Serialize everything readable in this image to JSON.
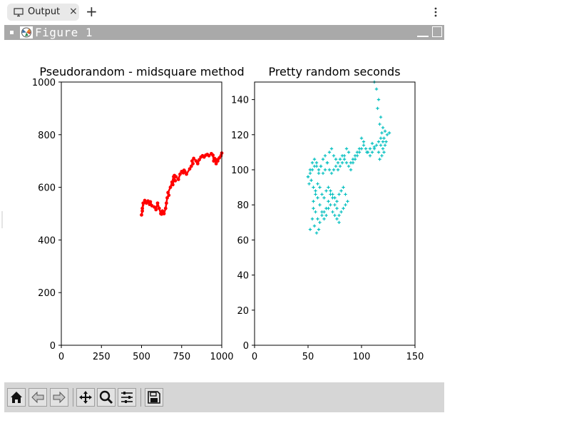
{
  "tab": {
    "title": "Output",
    "close": "×",
    "new_tab": "+"
  },
  "window": {
    "title": "Figure 1"
  },
  "toolbar": {
    "buttons": [
      "home-icon",
      "back-arrow-icon",
      "forward-arrow-icon",
      "pan-icon",
      "zoom-icon",
      "configure-subplots-icon",
      "save-icon"
    ]
  },
  "colors": {
    "left_series": "#ff0000",
    "right_series": "#00bfbf",
    "titlebar": "#a9a9a9",
    "toolbar": "#d6d6d6"
  },
  "chart_data": [
    {
      "type": "line",
      "title": "Pseudorandom - midsquare method",
      "xlabel": "",
      "ylabel": "",
      "xlim": [
        0,
        1000
      ],
      "ylim": [
        0,
        1000
      ],
      "xticks": [
        0,
        250,
        500,
        750,
        1000
      ],
      "yticks": [
        0,
        200,
        400,
        600,
        800,
        1000
      ],
      "series": [
        {
          "color": "#ff0000",
          "x": [
            500,
            505,
            510,
            505,
            520,
            530,
            540,
            550,
            555,
            565,
            580,
            590,
            600,
            610,
            620,
            630,
            625,
            640,
            650,
            655,
            660,
            670,
            665,
            680,
            690,
            700,
            710,
            700,
            695,
            700,
            705,
            715,
            730,
            740,
            750,
            760,
            765,
            770,
            780,
            800,
            810,
            820,
            815,
            825,
            840,
            850,
            860,
            870,
            880,
            890,
            900,
            910,
            920,
            935,
            945,
            950,
            955,
            965,
            970,
            975,
            985,
            995,
            1000
          ],
          "y": [
            495,
            510,
            540,
            520,
            550,
            540,
            548,
            535,
            545,
            530,
            525,
            515,
            540,
            520,
            500,
            510,
            498,
            500,
            520,
            540,
            560,
            570,
            580,
            600,
            620,
            630,
            625,
            640,
            610,
            630,
            645,
            640,
            630,
            650,
            660,
            655,
            665,
            660,
            650,
            670,
            680,
            690,
            700,
            710,
            700,
            690,
            705,
            715,
            720,
            715,
            722,
            725,
            720,
            728,
            722,
            700,
            710,
            690,
            705,
            700,
            712,
            720,
            730
          ]
        }
      ]
    },
    {
      "type": "scatter",
      "title": "Pretty random seconds",
      "xlabel": "",
      "ylabel": "",
      "xlim": [
        0,
        150
      ],
      "ylim": [
        0,
        150
      ],
      "xticks": [
        0,
        50,
        100,
        150
      ],
      "yticks": [
        0,
        20,
        40,
        60,
        80,
        100,
        120,
        140
      ],
      "series": [
        {
          "color": "#00bfbf",
          "x": [
            112,
            114,
            116,
            115,
            118,
            117,
            120,
            119,
            122,
            121,
            124,
            126,
            123,
            120,
            118,
            116,
            112,
            110,
            108,
            105,
            102,
            100,
            98,
            96,
            94,
            92,
            90,
            88,
            86,
            84,
            82,
            80,
            78,
            76,
            74,
            72,
            70,
            68,
            66,
            64,
            62,
            60,
            58,
            56,
            54,
            52,
            50,
            51,
            53,
            55,
            57,
            59,
            61,
            63,
            65,
            67,
            69,
            71,
            73,
            75,
            77,
            79,
            81,
            83,
            85,
            87,
            85,
            83,
            81,
            79,
            77,
            75,
            73,
            71,
            69,
            67,
            65,
            63,
            61,
            59,
            57,
            55,
            55,
            57,
            59,
            61,
            63,
            65,
            67,
            69,
            71,
            73,
            75,
            77,
            79,
            60,
            58,
            56,
            54,
            52,
            50,
            52,
            54,
            56,
            58,
            60,
            62,
            64,
            66,
            68,
            70,
            72,
            74,
            76,
            78,
            80,
            82,
            84,
            86,
            88,
            90,
            92,
            94,
            96,
            98,
            100,
            102,
            104,
            106,
            108,
            110,
            112,
            114,
            116,
            118,
            120,
            122,
            119,
            117,
            121
          ],
          "y": [
            150,
            146,
            140,
            135,
            130,
            126,
            124,
            121,
            122,
            118,
            120,
            121,
            116,
            112,
            114,
            110,
            113,
            115,
            112,
            110,
            116,
            118,
            112,
            110,
            108,
            106,
            104,
            110,
            112,
            108,
            104,
            102,
            100,
            106,
            108,
            112,
            110,
            104,
            100,
            98,
            102,
            100,
            104,
            102,
            100,
            98,
            96,
            92,
            94,
            90,
            88,
            92,
            90,
            86,
            84,
            88,
            90,
            88,
            86,
            84,
            82,
            86,
            88,
            90,
            86,
            82,
            80,
            78,
            76,
            74,
            78,
            80,
            84,
            86,
            82,
            78,
            76,
            74,
            70,
            72,
            76,
            78,
            82,
            86,
            84,
            80,
            76,
            72,
            74,
            78,
            80,
            76,
            74,
            72,
            70,
            66,
            64,
            68,
            72,
            66,
            96,
            100,
            104,
            106,
            102,
            98,
            102,
            106,
            108,
            104,
            100,
            98,
            100,
            102,
            104,
            106,
            108,
            106,
            104,
            102,
            100,
            104,
            106,
            108,
            110,
            112,
            114,
            112,
            110,
            108,
            110,
            112,
            114,
            116,
            118,
            116,
            114,
            108,
            106,
            110
          ]
        }
      ]
    }
  ]
}
